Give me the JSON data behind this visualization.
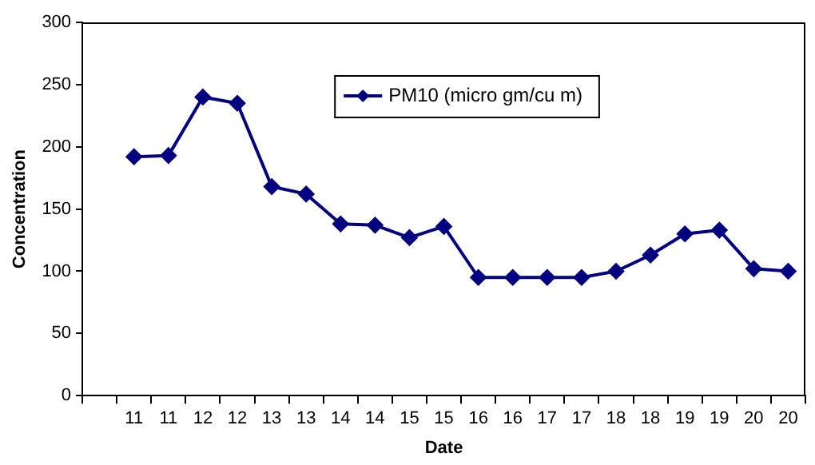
{
  "chart_data": {
    "type": "line",
    "xlabel": "Date",
    "ylabel": "Concentration",
    "categories": [
      null,
      "11",
      "11",
      "12",
      "12",
      "13",
      "13",
      "14",
      "14",
      "15",
      "15",
      "16",
      "16",
      "17",
      "17",
      "18",
      "18",
      "19",
      "19",
      "20",
      "20"
    ],
    "series": [
      {
        "name": "PM10 (micro gm/cu m)",
        "color": "#000080",
        "values": [
          null,
          192,
          193,
          240,
          235,
          168,
          162,
          138,
          137,
          127,
          136,
          95,
          95,
          95,
          95,
          100,
          113,
          130,
          133,
          102,
          100
        ]
      }
    ],
    "ylim": [
      0,
      300
    ],
    "yticks": [
      0,
      50,
      100,
      150,
      200,
      250,
      300
    ],
    "grid": false,
    "legend": "top",
    "marker": "diamond",
    "line_style": "solid"
  }
}
